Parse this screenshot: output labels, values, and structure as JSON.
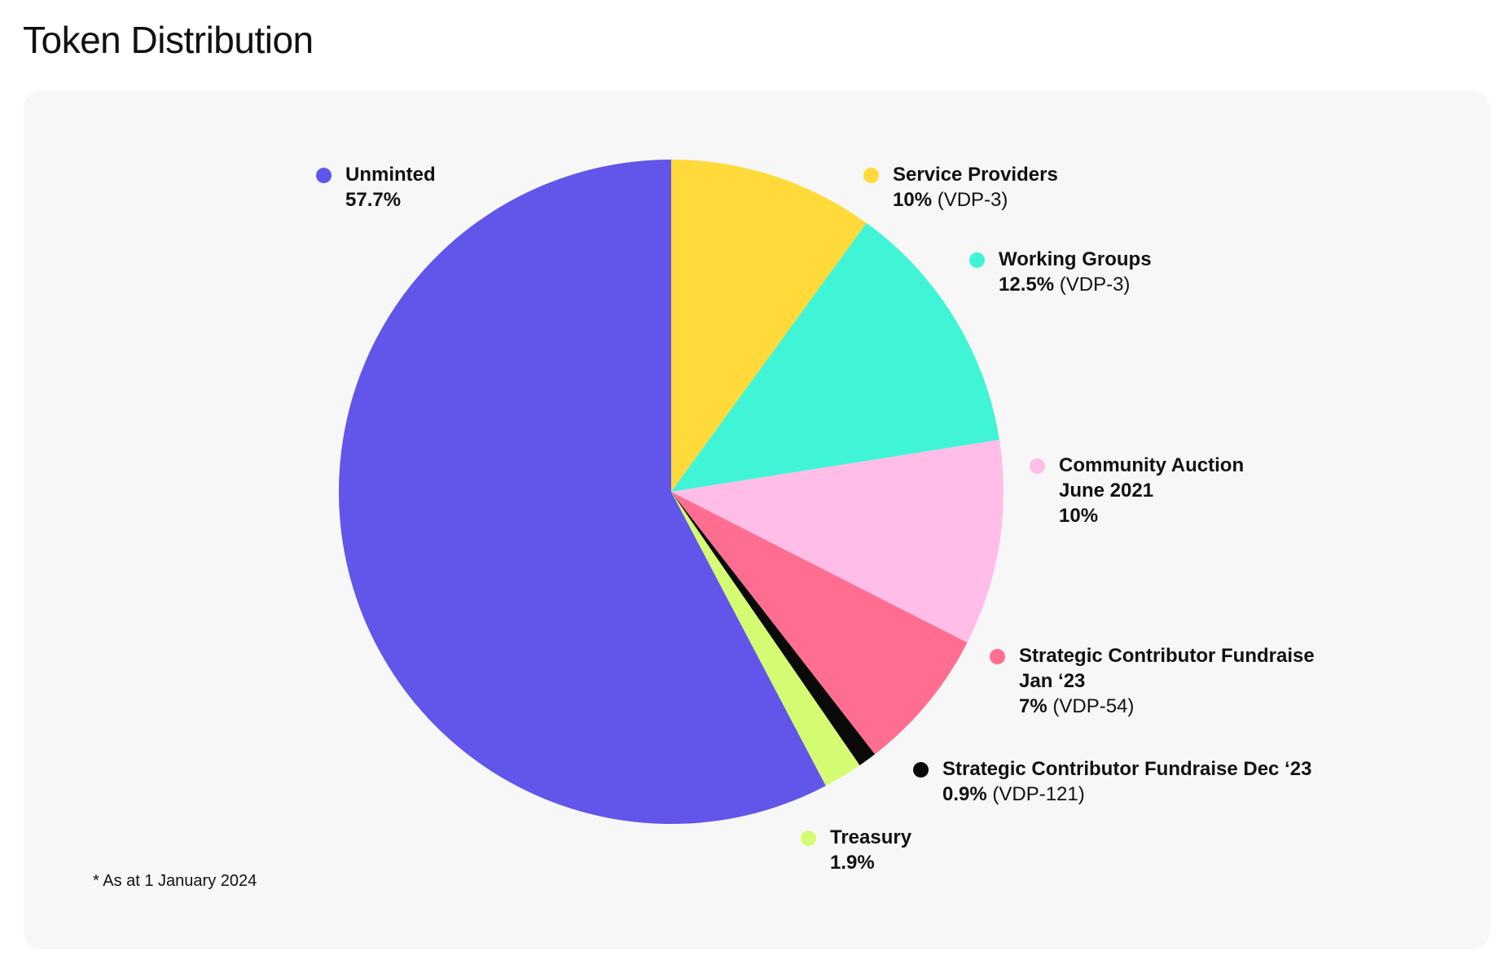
{
  "page": {
    "title": "Token Distribution"
  },
  "chart_data": {
    "type": "pie",
    "title": "Token Distribution",
    "note": "* As at 1 January 2024",
    "start_angle_deg": 0,
    "direction": "clockwise",
    "slices": [
      {
        "label": "Service Providers",
        "value": 10,
        "value_text": "10%",
        "ref": "(VDP-3)",
        "color": "#FFDA3A"
      },
      {
        "label": "Working Groups",
        "value": 12.5,
        "value_text": "12.5%",
        "ref": "(VDP-3)",
        "color": "#40F5D6"
      },
      {
        "label": "Community Auction June 2021",
        "label_lines": [
          "Community Auction",
          "June 2021"
        ],
        "value": 10,
        "value_text": "10%",
        "ref": "",
        "color": "#FFBDE8"
      },
      {
        "label": "Strategic Contributor Fundraise Jan ‘23",
        "label_lines": [
          "Strategic Contributor Fundraise",
          "Jan ‘23"
        ],
        "value": 7,
        "value_text": "7%",
        "ref": "(VDP-54)",
        "color": "#FF6E91"
      },
      {
        "label": "Strategic Contributor Fundraise Dec ‘23",
        "value": 0.9,
        "value_text": "0.9%",
        "ref": "(VDP-121)",
        "color": "#0A0A0A"
      },
      {
        "label": "Treasury",
        "value": 1.9,
        "value_text": "1.9%",
        "ref": "",
        "color": "#D5FB72"
      },
      {
        "label": "Unminted",
        "value": 57.7,
        "value_text": "57.7%",
        "ref": "",
        "color": "#6155EA"
      }
    ]
  }
}
